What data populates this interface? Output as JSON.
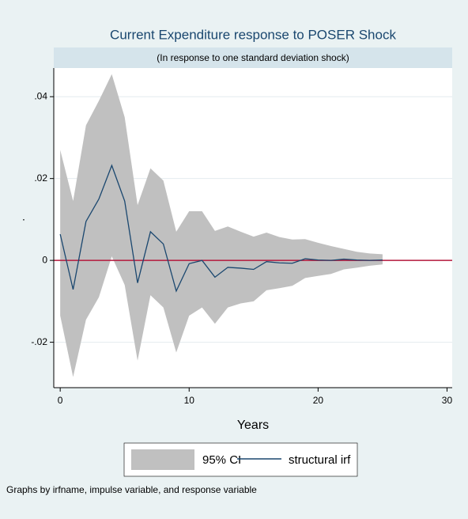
{
  "chart_data": {
    "type": "irf",
    "title": "Current Expenditure response to POSER Shock",
    "subtitle": "(In response to one standard deviation shock)",
    "x_label": "Years",
    "y_label": ".",
    "note": "Graphs by irfname, impulse variable, and response variable",
    "x": [
      0,
      1,
      2,
      3,
      4,
      5,
      6,
      7,
      8,
      9,
      10,
      11,
      12,
      13,
      14,
      15,
      16,
      17,
      18,
      19,
      20,
      21,
      22,
      23,
      24,
      25
    ],
    "series": [
      {
        "name": "95% CI",
        "color": "#c0c0c0",
        "upper": [
          0.027,
          0.0145,
          0.033,
          0.039,
          0.0455,
          0.035,
          0.0135,
          0.0225,
          0.0195,
          0.007,
          0.012,
          0.012,
          0.0072,
          0.0083,
          0.007,
          0.0058,
          0.0068,
          0.0057,
          0.0051,
          0.0052,
          0.0043,
          0.0035,
          0.0028,
          0.0021,
          0.0017,
          0.0015
        ],
        "lower": [
          -0.0135,
          -0.0285,
          -0.0145,
          -0.009,
          0.001,
          -0.006,
          -0.0245,
          -0.0085,
          -0.0115,
          -0.0225,
          -0.0135,
          -0.0115,
          -0.0155,
          -0.0115,
          -0.0105,
          -0.01,
          -0.0073,
          -0.0068,
          -0.0062,
          -0.0043,
          -0.0038,
          -0.0033,
          -0.0022,
          -0.0018,
          -0.0013,
          -0.001
        ]
      },
      {
        "name": "structural irf",
        "color": "#1a476f",
        "values": [
          0.0064,
          -0.0071,
          0.0095,
          0.015,
          0.0232,
          0.0145,
          -0.0055,
          0.007,
          0.004,
          -0.0075,
          -0.0008,
          0,
          -0.0041,
          -0.0017,
          -0.0019,
          -0.0022,
          -0.0003,
          -0.0006,
          -0.0007,
          0.0004,
          0.0001,
          0,
          0.0003,
          0.0001,
          0,
          0.0001
        ]
      }
    ],
    "xlim": [
      -0.5,
      30.4
    ],
    "xticks": [
      0,
      10,
      20,
      30
    ],
    "ylim": [
      -0.0311,
      0.047
    ],
    "yticks": [
      {
        "value": -0.02,
        "label": "-.02"
      },
      0,
      {
        "value": 0.02,
        "label": ".02"
      },
      {
        "value": 0.04,
        "label": ".04"
      }
    ],
    "grid": true,
    "yline": 0,
    "yline_color": "#b5183c"
  }
}
